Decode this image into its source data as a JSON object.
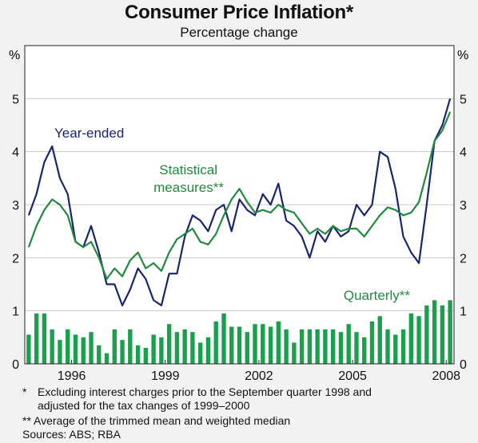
{
  "title": "Consumer Price Inflation*",
  "subtitle": "Percentage change",
  "colors": {
    "year_ended": "#1a2570",
    "statistical": "#1f8a3e",
    "quarterly": "#19a04a",
    "plot_bg": "#ffffff",
    "grid": "#c8c8c8"
  },
  "footnotes": {
    "fn1_mark": "*",
    "fn1_line1": "Excluding interest charges prior to the September quarter 1998 and",
    "fn1_line2": "adjusted for the tax changes of 1999–2000",
    "fn2": "**  Average of the trimmed mean and weighted median",
    "sources": "Sources: ABS; RBA"
  },
  "chart_data": {
    "type": "line",
    "x_start": "Sep 1994",
    "x_step": "quarter",
    "xticks": [
      "1996",
      "1999",
      "2002",
      "2005",
      "2008"
    ],
    "ylim": [
      0,
      6
    ],
    "yticks": [
      "0",
      "1",
      "2",
      "3",
      "4",
      "5"
    ],
    "yunit_left": "%",
    "yunit_right": "%",
    "grid": true,
    "annotations": {
      "year_ended": "Year-ended",
      "statistical_line1": "Statistical",
      "statistical_line2": "measures**",
      "quarterly": "Quarterly**"
    },
    "series": [
      {
        "name": "Year-ended",
        "type": "line",
        "values": [
          2.8,
          3.2,
          3.8,
          4.1,
          3.5,
          3.2,
          2.3,
          2.2,
          2.6,
          2.1,
          1.5,
          1.5,
          1.1,
          1.4,
          1.8,
          1.6,
          1.2,
          1.1,
          1.7,
          1.7,
          2.4,
          2.8,
          2.7,
          2.5,
          2.9,
          3.0,
          2.5,
          3.1,
          2.9,
          2.8,
          3.2,
          3.0,
          3.4,
          2.7,
          2.6,
          2.4,
          2.0,
          2.5,
          2.3,
          2.6,
          2.4,
          2.5,
          3.0,
          2.8,
          3.0,
          4.0,
          3.9,
          3.3,
          2.4,
          2.1,
          1.9,
          3.0,
          4.2,
          4.5,
          5.0
        ]
      },
      {
        "name": "Statistical measures**",
        "type": "line",
        "values": [
          2.2,
          2.6,
          2.9,
          3.1,
          3.0,
          2.8,
          2.3,
          2.2,
          2.3,
          2.0,
          1.6,
          1.8,
          1.65,
          1.95,
          2.1,
          1.8,
          1.9,
          1.75,
          2.1,
          2.35,
          2.45,
          2.55,
          2.3,
          2.25,
          2.45,
          2.8,
          3.1,
          3.3,
          3.05,
          2.85,
          2.9,
          2.85,
          3.0,
          2.9,
          2.85,
          2.65,
          2.45,
          2.55,
          2.45,
          2.6,
          2.5,
          2.55,
          2.55,
          2.4,
          2.6,
          2.8,
          2.95,
          2.9,
          2.8,
          2.85,
          3.05,
          3.6,
          4.2,
          4.4,
          4.75
        ]
      },
      {
        "name": "Quarterly**",
        "type": "bar",
        "values": [
          0.55,
          0.95,
          0.95,
          0.65,
          0.45,
          0.65,
          0.55,
          0.5,
          0.6,
          0.35,
          0.2,
          0.65,
          0.45,
          0.65,
          0.35,
          0.3,
          0.55,
          0.5,
          0.75,
          0.6,
          0.65,
          0.6,
          0.4,
          0.5,
          0.8,
          0.95,
          0.7,
          0.7,
          0.6,
          0.75,
          0.75,
          0.7,
          0.8,
          0.65,
          0.4,
          0.65,
          0.65,
          0.65,
          0.65,
          0.65,
          0.6,
          0.75,
          0.6,
          0.5,
          0.8,
          0.9,
          0.65,
          0.55,
          0.65,
          0.95,
          0.9,
          1.1,
          1.2,
          1.1,
          1.2
        ]
      }
    ]
  }
}
